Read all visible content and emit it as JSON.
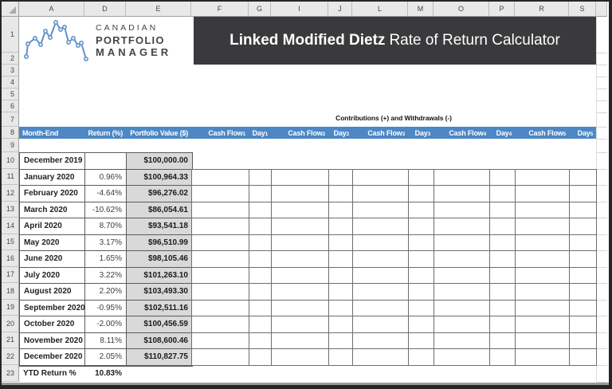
{
  "chrome": {
    "column_headers": [
      "A",
      "D",
      "E",
      "F",
      "G",
      "I",
      "J",
      "L",
      "M",
      "O",
      "P",
      "R",
      "S"
    ],
    "row_numbers": [
      "1",
      "2",
      "3",
      "4",
      "5",
      "6",
      "7",
      "8",
      "9",
      "10",
      "11",
      "12",
      "13",
      "14",
      "15",
      "16",
      "17",
      "18",
      "19",
      "20",
      "21",
      "22",
      "23"
    ]
  },
  "logo": {
    "line1": "CANADIAN",
    "line2": "PORTFOLIO",
    "line3": "MANAGER"
  },
  "banner": {
    "title_bold": "Linked Modified Dietz",
    "title_regular": "Rate of Return Calculator"
  },
  "notes": {
    "contributions": "Contributions (+) and Withdrawals (-)"
  },
  "table": {
    "headers": {
      "month": "Month-End",
      "return_pct": "Return (%)",
      "portfolio": "Portfolio Value ($)",
      "cashflow_label": "Cash Flow",
      "day_label": "Day",
      "flow_subscripts": [
        "1",
        "2",
        "3",
        "4",
        "5"
      ]
    },
    "rows": [
      {
        "month": "December 2019",
        "return": "",
        "value": "$100,000.00"
      },
      {
        "month": "January 2020",
        "return": "0.96%",
        "value": "$100,964.33"
      },
      {
        "month": "February 2020",
        "return": "-4.64%",
        "value": "$96,276.02"
      },
      {
        "month": "March 2020",
        "return": "-10.62%",
        "value": "$86,054.61"
      },
      {
        "month": "April 2020",
        "return": "8.70%",
        "value": "$93,541.18"
      },
      {
        "month": "May 2020",
        "return": "3.17%",
        "value": "$96,510.99"
      },
      {
        "month": "June 2020",
        "return": "1.65%",
        "value": "$98,105.46"
      },
      {
        "month": "July 2020",
        "return": "3.22%",
        "value": "$101,263.10"
      },
      {
        "month": "August 2020",
        "return": "2.20%",
        "value": "$103,493.30"
      },
      {
        "month": "September 2020",
        "return": "-0.95%",
        "value": "$102,511.16"
      },
      {
        "month": "October 2020",
        "return": "-2.00%",
        "value": "$100,456.59"
      },
      {
        "month": "November 2020",
        "return": "8.11%",
        "value": "$108,600.46"
      },
      {
        "month": "December 2020",
        "return": "2.05%",
        "value": "$110,827.75"
      }
    ],
    "ytd": {
      "label": "YTD Return %",
      "value": "10.83%"
    }
  },
  "colors": {
    "header_blue": "#4d87c5",
    "banner_dark": "#3a393b",
    "portfolio_fill": "#d9d9d9",
    "logo_blue": "#5f91c7"
  }
}
